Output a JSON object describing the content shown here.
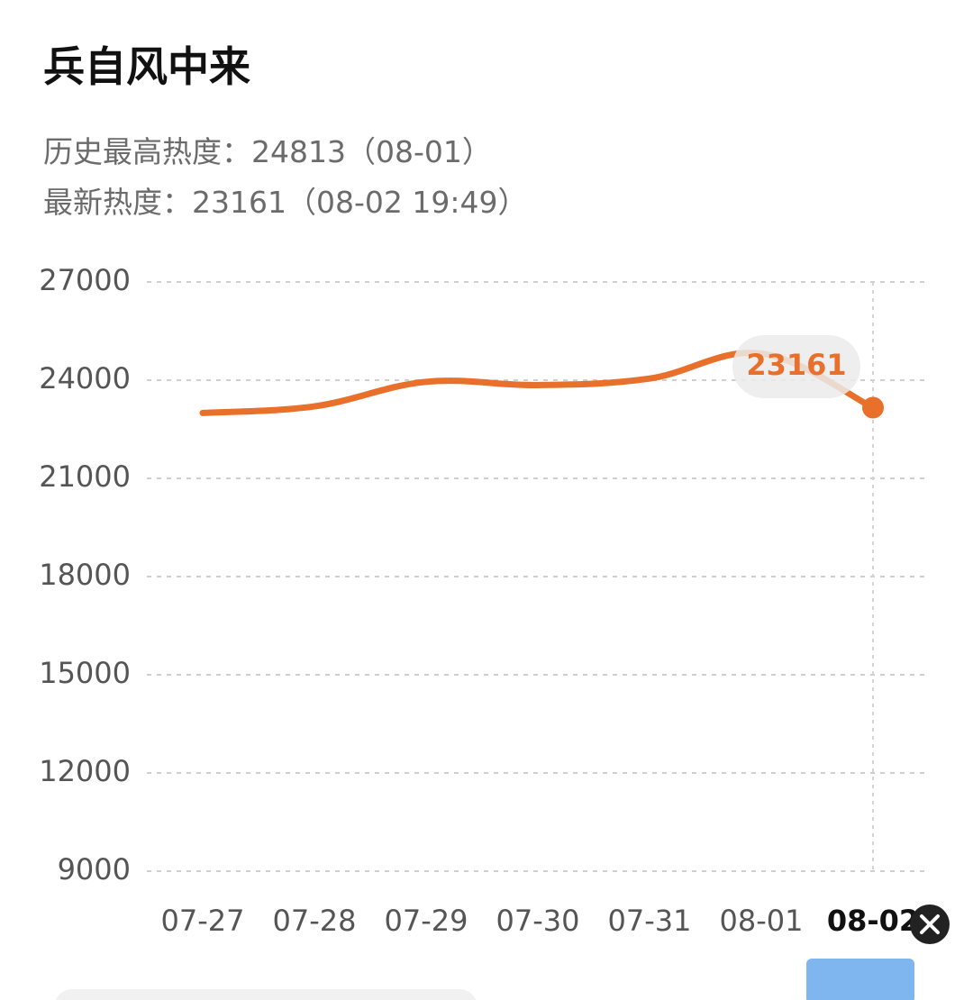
{
  "header": {
    "title": "兵自风中来",
    "peak": "历史最高热度：24813（08-01）",
    "latest": "最新热度：23161（08-02 19:49）"
  },
  "chart_data": {
    "type": "line",
    "categories": [
      "07-27",
      "07-28",
      "07-29",
      "07-30",
      "07-31",
      "08-01",
      "08-02"
    ],
    "values": [
      23000,
      23200,
      23950,
      23850,
      24050,
      24813,
      23161
    ],
    "color": "#e8702a",
    "ylim": [
      9000,
      27000
    ],
    "yticks": [
      9000,
      12000,
      15000,
      18000,
      21000,
      24000,
      27000
    ],
    "grid": true
  }
}
